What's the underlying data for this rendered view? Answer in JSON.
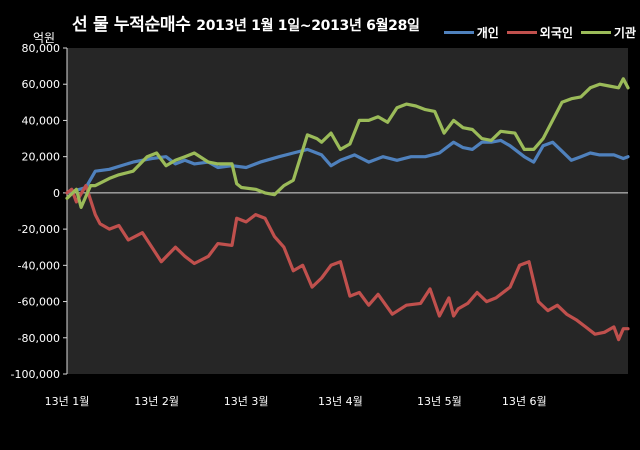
{
  "chart_data": {
    "type": "line",
    "title": "선 물 누적순매수",
    "subtitle": "2013년 1월 1일~2013년 6월28일",
    "ylabel": "억원",
    "ylim": [
      -100000,
      80000
    ],
    "yticks": [
      80000,
      60000,
      40000,
      20000,
      0,
      -20000,
      -40000,
      -60000,
      -80000,
      -100000
    ],
    "ytick_labels": [
      "80,000",
      "60,000",
      "40,000",
      "20,000",
      "0",
      "-20,000",
      "-40,000",
      "-60,000",
      "-80,000",
      "-100,000"
    ],
    "xtick_labels": [
      "13년 1월",
      "13년 2월",
      "13년 3월",
      "13년 4월",
      "13년 5월",
      "13년 6월"
    ],
    "xlim": [
      1,
      120
    ],
    "xtick_positions": [
      1,
      20,
      39,
      59,
      80,
      98
    ],
    "grid": false,
    "legend_position": "top-right",
    "series": [
      {
        "name": "개인",
        "color": "#4f81bd",
        "x": [
          1,
          5,
          7,
          10,
          15,
          19,
          22,
          24,
          26,
          28,
          31,
          33,
          36,
          39,
          42,
          46,
          49,
          52,
          55,
          57,
          59,
          62,
          65,
          68,
          71,
          74,
          77,
          80,
          83,
          85,
          87,
          89,
          91,
          93,
          95,
          98,
          100,
          102,
          104,
          106,
          108,
          110,
          112,
          114,
          117,
          119,
          120
        ],
        "values": [
          0,
          3000,
          12000,
          13000,
          17000,
          19000,
          20000,
          16000,
          18000,
          16000,
          17000,
          14000,
          15000,
          14000,
          17000,
          20000,
          22000,
          24000,
          21000,
          15000,
          18000,
          21000,
          17000,
          20000,
          18000,
          20000,
          20000,
          22000,
          28000,
          25000,
          24000,
          28000,
          28000,
          29000,
          26000,
          20000,
          17000,
          26000,
          28000,
          23000,
          18000,
          20000,
          22000,
          21000,
          21000,
          19000,
          20000
        ]
      },
      {
        "name": "외국인",
        "color": "#c0504d",
        "x": [
          1,
          2,
          3,
          5,
          7,
          8,
          10,
          12,
          14,
          17,
          19,
          21,
          24,
          26,
          28,
          31,
          33,
          36,
          37,
          39,
          41,
          43,
          45,
          47,
          49,
          51,
          53,
          55,
          57,
          59,
          61,
          63,
          65,
          67,
          70,
          73,
          76,
          78,
          80,
          82,
          83,
          84,
          86,
          88,
          90,
          92,
          95,
          97,
          99,
          101,
          103,
          105,
          107,
          109,
          111,
          113,
          115,
          117,
          118,
          119,
          120
        ],
        "values": [
          0,
          2000,
          -5000,
          4000,
          -12000,
          -17000,
          -20000,
          -18000,
          -26000,
          -22000,
          -30000,
          -38000,
          -30000,
          -35000,
          -39000,
          -35000,
          -28000,
          -29000,
          -14000,
          -16000,
          -12000,
          -14000,
          -24000,
          -30000,
          -43000,
          -40000,
          -52000,
          -47000,
          -40000,
          -38000,
          -57000,
          -55000,
          -62000,
          -56000,
          -67000,
          -62000,
          -61000,
          -53000,
          -68000,
          -58000,
          -68000,
          -64000,
          -61000,
          -55000,
          -60000,
          -58000,
          -52000,
          -40000,
          -38000,
          -60000,
          -65000,
          -62000,
          -67000,
          -70000,
          -74000,
          -78000,
          -77000,
          -74000,
          -81000,
          -75000,
          -75000
        ]
      },
      {
        "name": "기관",
        "color": "#9bbb59",
        "x": [
          1,
          3,
          4,
          6,
          7,
          10,
          12,
          15,
          18,
          20,
          22,
          24,
          26,
          28,
          31,
          33,
          36,
          37,
          38,
          41,
          43,
          45,
          47,
          49,
          52,
          54,
          55,
          57,
          59,
          61,
          63,
          65,
          67,
          69,
          71,
          73,
          75,
          77,
          79,
          81,
          83,
          85,
          87,
          89,
          91,
          93,
          96,
          98,
          100,
          102,
          104,
          106,
          108,
          110,
          112,
          114,
          116,
          118,
          119,
          120
        ],
        "values": [
          -3000,
          2000,
          -8000,
          4000,
          4000,
          8000,
          10000,
          12000,
          20000,
          22000,
          15000,
          18000,
          20000,
          22000,
          17000,
          16000,
          16000,
          5000,
          3000,
          2000,
          0,
          -1000,
          4000,
          7000,
          32000,
          30000,
          28000,
          33000,
          24000,
          27000,
          40000,
          40000,
          42000,
          39000,
          47000,
          49000,
          48000,
          46000,
          45000,
          33000,
          40000,
          36000,
          35000,
          30000,
          29000,
          34000,
          33000,
          24000,
          24000,
          30000,
          40000,
          50000,
          52000,
          53000,
          58000,
          60000,
          59000,
          58000,
          63000,
          58000
        ]
      }
    ]
  }
}
